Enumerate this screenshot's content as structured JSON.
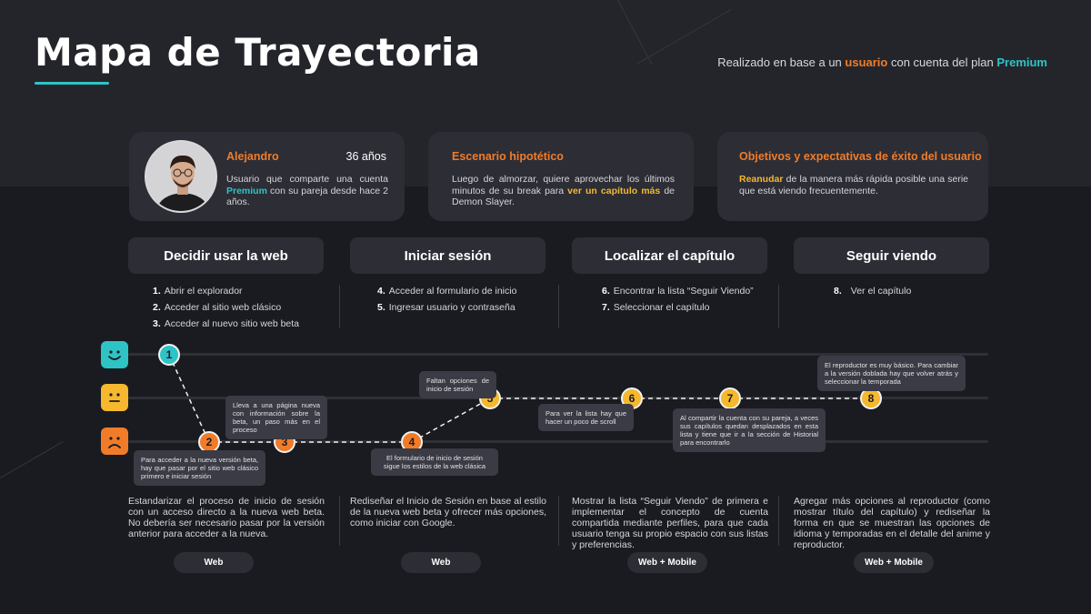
{
  "header": {
    "title": "Mapa de Trayectoria",
    "subtitle_pre": "Realizado en base a un ",
    "subtitle_user": "usuario",
    "subtitle_mid": " con cuenta del plan ",
    "subtitle_plan": "Premium"
  },
  "persona": {
    "name": "Alejandro",
    "age": "36 años",
    "desc_pre": "Usuario que comparte una cuenta ",
    "desc_plan": "Premium",
    "desc_post": " con su pareja desde hace 2 años."
  },
  "scenario": {
    "title": "Escenario hipotético",
    "text_pre": "Luego de almorzar, quiere aprovechar los últimos minutos de su break para ",
    "text_highlight": "ver un capítulo más",
    "text_post": " de Demon Slayer."
  },
  "goals": {
    "title": "Objetivos y expectativas de éxito del usuario",
    "text_highlight": "Reanudar",
    "text_post": " de la manera más rápida posible una serie que está viendo frecuentemente."
  },
  "stages": [
    {
      "title": "Decidir usar la web",
      "steps": [
        {
          "num": "1.",
          "text": "Abrir el explorador"
        },
        {
          "num": "2.",
          "text": "Acceder al sitio web clásico"
        },
        {
          "num": "3.",
          "text": "Acceder al nuevo sitio web beta"
        }
      ],
      "solution": "Estandarizar el proceso de inicio de sesión con un acceso directo a la nueva web beta. No debería ser necesario pasar por la versión anterior para acceder a la nueva.",
      "platform": "Web"
    },
    {
      "title": "Iniciar sesión",
      "steps": [
        {
          "num": "4.",
          "text": "Acceder al formulario de inicio"
        },
        {
          "num": "5.",
          "text": "Ingresar usuario y contraseña"
        }
      ],
      "solution": "Rediseñar el Inicio de Sesión en base al estilo de la nueva web beta y ofrecer más opciones, como iniciar con Google.",
      "platform": "Web"
    },
    {
      "title": "Localizar el capítulo",
      "steps": [
        {
          "num": "6.",
          "text": "Encontrar la lista “Seguir Viendo”"
        },
        {
          "num": "7.",
          "text": "Seleccionar el capítulo"
        }
      ],
      "solution": "Mostrar la lista “Seguir Viendo” de primera e implementar el concepto de cuenta compartida mediante perfiles, para que cada usuario tenga su propio espacio con sus listas y preferencias.",
      "platform": "Web + Mobile"
    },
    {
      "title": "Seguir viendo",
      "steps": [
        {
          "num": "8.",
          "text": "Ver el capítulo"
        }
      ],
      "solution": "Agregar más opciones al reproductor (como mostrar título del capítulo) y rediseñar la forma en que se muestran las opciones de idioma y temporadas en el detalle del anime y reproductor.",
      "platform": "Web + Mobile"
    }
  ],
  "emotions": [
    "happy-face-icon",
    "neutral-face-icon",
    "sad-face-icon"
  ],
  "colors": {
    "teal": "#2ec4c6",
    "yellow": "#f5b82e",
    "orange": "#f07c2a",
    "background": "#1a1b20",
    "card": "#2c2d35"
  },
  "journey": {
    "points": [
      {
        "label": "1",
        "emotion": "happy"
      },
      {
        "label": "2",
        "emotion": "sad"
      },
      {
        "label": "3",
        "emotion": "sad"
      },
      {
        "label": "4",
        "emotion": "sad"
      },
      {
        "label": "5",
        "emotion": "neutral"
      },
      {
        "label": "6",
        "emotion": "neutral"
      },
      {
        "label": "7",
        "emotion": "neutral"
      },
      {
        "label": "8",
        "emotion": "neutral"
      }
    ],
    "notes": [
      "Para acceder a la nueva versión beta, hay que pasar por el sitio web clásico primero e iniciar sesión",
      "Lleva a una página nueva con información sobre la beta, un paso más en el proceso",
      "El formulario de inicio de sesión sigue los estilos de la web clásica",
      "Faltan opciones de inicio de sesión",
      "Para ver la lista hay que hacer un poco de scroll",
      "Al compartir la cuenta con su pareja, a veces sus capítulos quedan desplazados en esta lista y tiene que ir a la sección de Historial para encontrarlo",
      "El reproductor es muy básico. Para cambiar a la versión doblada hay que volver atrás y seleccionar la temporada"
    ]
  }
}
